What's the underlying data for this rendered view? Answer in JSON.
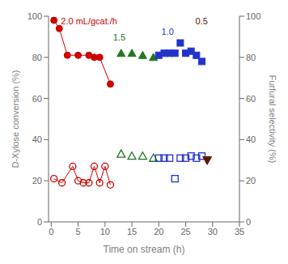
{
  "chart_data": {
    "type": "scatter",
    "xlabel": "Time on stream (h)",
    "ylabel": "D-Xylose conversion (%)",
    "y2label": "Furfural selectivity (%)",
    "xlim": [
      -0.5,
      35
    ],
    "xticks": [
      0,
      5,
      10,
      15,
      20,
      25,
      30,
      35
    ],
    "ylim": [
      0,
      100
    ],
    "yticks": [
      0,
      20,
      40,
      60,
      80,
      100
    ],
    "y2lim": [
      0,
      100
    ],
    "y2ticks": [
      0,
      20,
      40,
      60,
      80,
      100
    ],
    "grid": false,
    "series": [
      {
        "x": [
          0.5,
          1.5,
          3,
          5,
          7,
          8,
          9,
          11
        ],
        "values": [
          98,
          94,
          81,
          81,
          81,
          80,
          80,
          67
        ],
        "color": "#cc0000",
        "marker": "circle",
        "line_style": "solid",
        "axis": "y"
      },
      {
        "x": [
          13,
          15,
          17,
          19
        ],
        "values": [
          82,
          82,
          81,
          80
        ],
        "color": "#227722",
        "marker": "triangle",
        "line_style": "none",
        "axis": "y"
      },
      {
        "x": [
          20,
          21,
          22,
          23,
          24,
          25,
          26,
          27,
          28
        ],
        "values": [
          81,
          82,
          82,
          82,
          87,
          82,
          83,
          81,
          78
        ],
        "color": "#2233cc",
        "marker": "square",
        "line_style": "none",
        "axis": "y"
      },
      {
        "x": [
          0.5,
          2,
          4,
          5,
          6,
          7,
          8,
          9,
          10,
          11
        ],
        "values": [
          21,
          19,
          27,
          20,
          19,
          19,
          27,
          19,
          27,
          18
        ],
        "color": "#cc0000",
        "marker": "circle_open",
        "line_style": "solid",
        "axis": "y2"
      },
      {
        "x": [
          13,
          15,
          17,
          19
        ],
        "values": [
          33,
          32,
          32,
          31
        ],
        "color": "#227722",
        "marker": "triangle_open",
        "line_style": "none",
        "axis": "y2"
      },
      {
        "x": [
          20,
          21,
          22,
          23,
          24,
          25,
          26,
          27,
          28
        ],
        "values": [
          31,
          31,
          31,
          21,
          31,
          31,
          32,
          31,
          32
        ],
        "color": "#2233cc",
        "marker": "square_open",
        "line_style": "none",
        "axis": "y2"
      },
      {
        "x": [
          29
        ],
        "values": [
          30
        ],
        "color": "#5a1a00",
        "marker": "triangle_down",
        "line_style": "none",
        "axis": "y2"
      }
    ],
    "annotations": [
      {
        "text": "2.0 mL/gcat./h",
        "x": 1.8,
        "y": 96,
        "color": "#cc0000"
      },
      {
        "text": "1.5",
        "x": 11.5,
        "y": 88,
        "color": "#227722"
      },
      {
        "text": "1.0",
        "x": 20.5,
        "y": 91,
        "color": "#2233cc"
      },
      {
        "text": "0.5",
        "x": 26.8,
        "y": 96,
        "color": "#5a1a00"
      }
    ]
  }
}
